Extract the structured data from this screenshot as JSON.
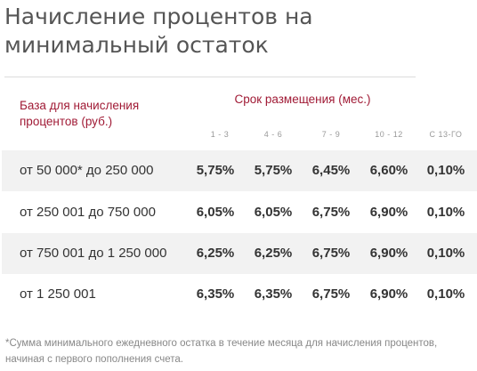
{
  "title": "Начисление процентов на минимальный остаток",
  "table": {
    "base_header": "База для начисления процентов (руб.)",
    "term_header": "Срок размещения (мес.)",
    "columns": [
      "1 - 3",
      "4 - 6",
      "7 - 9",
      "10 - 12",
      "С 13-ГО"
    ],
    "rows": [
      {
        "label": "от 50 000* до 250 000",
        "values": [
          "5,75%",
          "5,75%",
          "6,45%",
          "6,60%",
          "0,10%"
        ]
      },
      {
        "label": "от 250 001 до 750 000",
        "values": [
          "6,05%",
          "6,05%",
          "6,75%",
          "6,90%",
          "0,10%"
        ]
      },
      {
        "label": "от 750 001 до 1 250 000",
        "values": [
          "6,25%",
          "6,25%",
          "6,75%",
          "6,90%",
          "0,10%"
        ]
      },
      {
        "label": "от 1 250 001",
        "values": [
          "6,35%",
          "6,35%",
          "6,75%",
          "6,90%",
          "0,10%"
        ]
      }
    ]
  },
  "footnote": "*Сумма минимального ежедневного остатка в течение месяца для начисления процентов, начиная с первого пополнения счета."
}
